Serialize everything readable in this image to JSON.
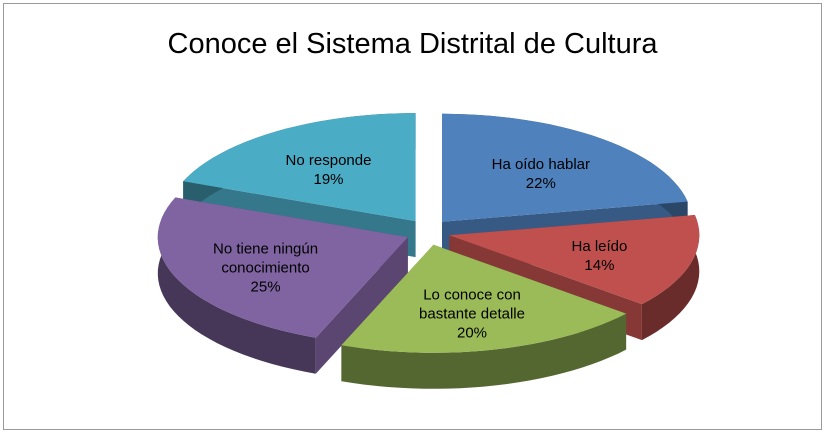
{
  "chart_data": {
    "type": "pie",
    "title": "Conoce el Sistema Distrital de Cultura",
    "categories": [
      "Ha oído hablar",
      "Ha leído",
      "Lo conoce con bastante detalle",
      "No tiene ningún conocimiento",
      "No responde"
    ],
    "values": [
      22,
      14,
      20,
      25,
      19
    ],
    "value_labels": [
      "22%",
      "14%",
      "20%",
      "25%",
      "19%"
    ],
    "colors": [
      "#4f81bd",
      "#c0504d",
      "#9bbb59",
      "#8064a2",
      "#4bacc6"
    ]
  }
}
